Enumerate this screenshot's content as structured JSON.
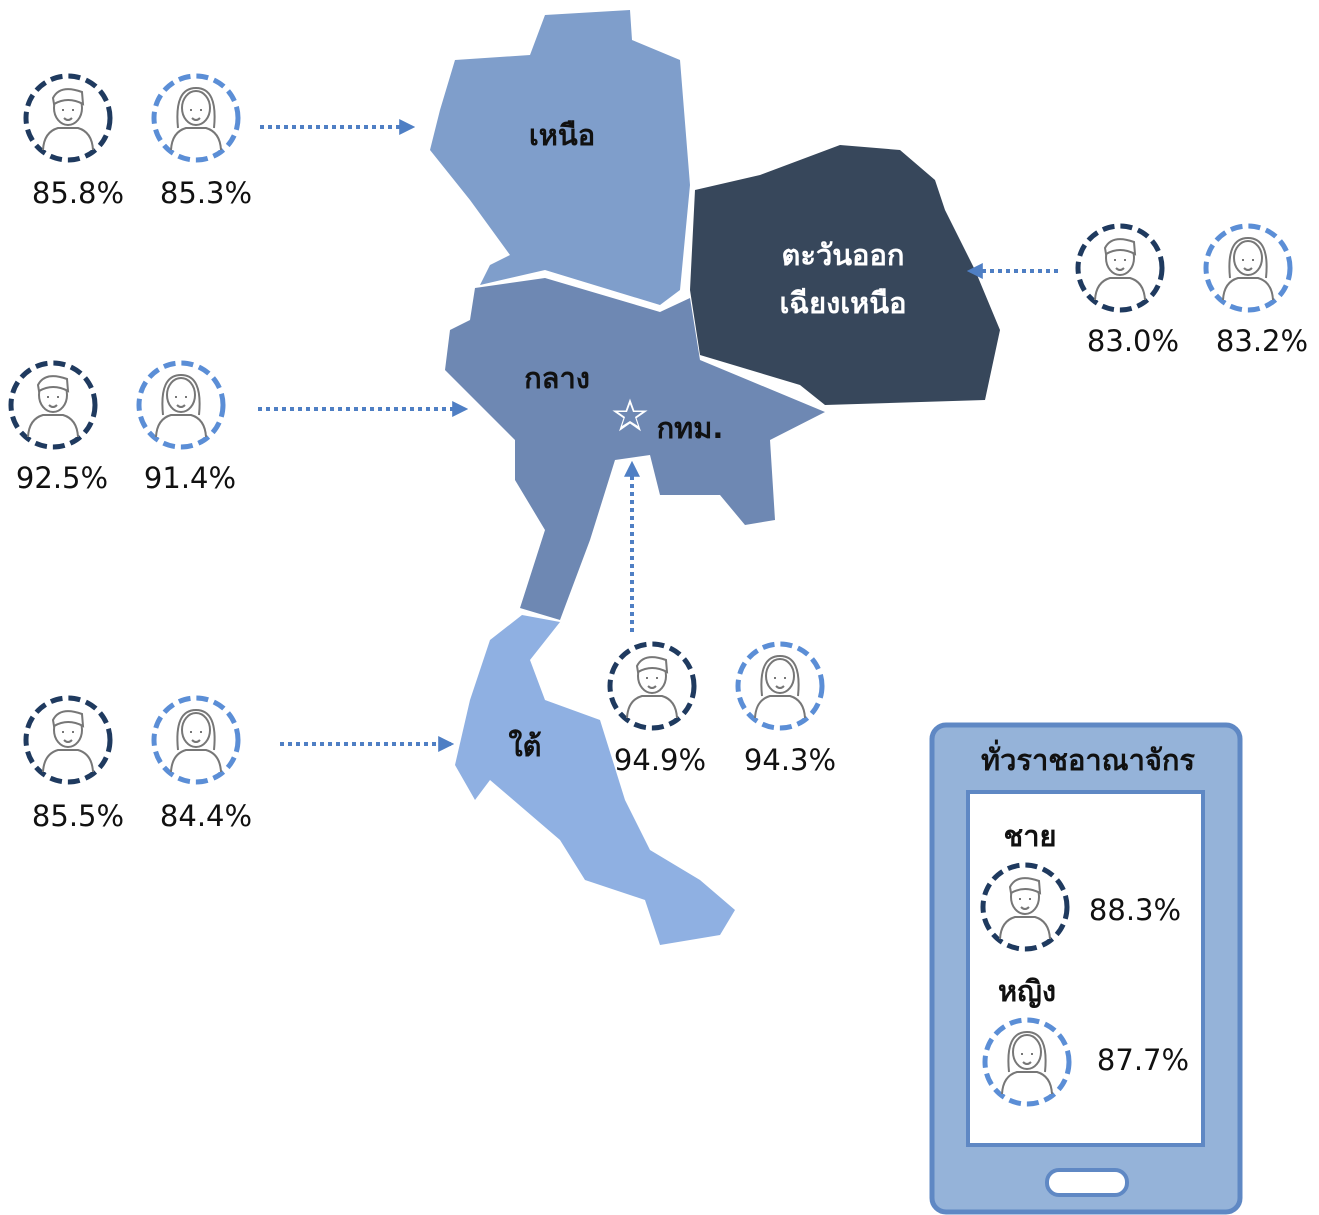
{
  "regions": [
    {
      "name": "เหนือ",
      "male": "85.8%",
      "female": "85.3%"
    },
    {
      "name": [
        "ตะวันออก",
        "เฉียงเหนือ"
      ],
      "male": "83.0%",
      "female": "83.2%"
    },
    {
      "name": "กลาง",
      "male": "92.5%",
      "female": "91.4%"
    },
    {
      "name": "ใต้",
      "male": "85.5%",
      "female": "84.4%"
    }
  ],
  "bangkok": {
    "name": "กทม.",
    "male": "94.9%",
    "female": "94.3%"
  },
  "national": {
    "title": "ทั่วราชอาณาจักร",
    "male_label": "ชาย",
    "male": "88.3%",
    "female_label": "หญิง",
    "female": "87.7%"
  }
}
